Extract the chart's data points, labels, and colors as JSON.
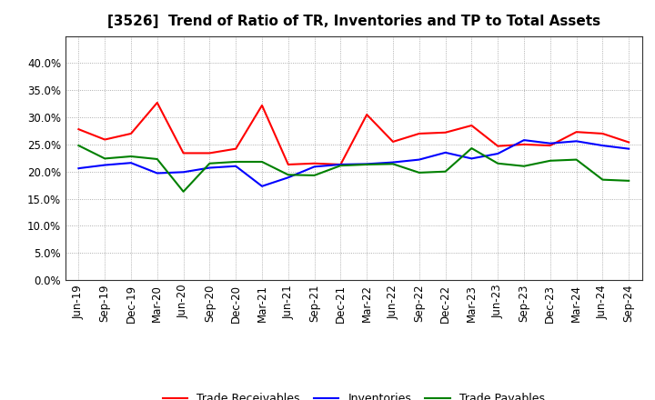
{
  "title": "[3526]  Trend of Ratio of TR, Inventories and TP to Total Assets",
  "x_labels": [
    "Jun-19",
    "Sep-19",
    "Dec-19",
    "Mar-20",
    "Jun-20",
    "Sep-20",
    "Dec-20",
    "Mar-21",
    "Jun-21",
    "Sep-21",
    "Dec-21",
    "Mar-22",
    "Jun-22",
    "Sep-22",
    "Dec-22",
    "Mar-23",
    "Jun-23",
    "Sep-23",
    "Dec-23",
    "Mar-24",
    "Jun-24",
    "Sep-24"
  ],
  "trade_receivables": [
    0.278,
    0.259,
    0.27,
    0.327,
    0.234,
    0.234,
    0.242,
    0.322,
    0.213,
    0.215,
    0.213,
    0.305,
    0.255,
    0.27,
    0.272,
    0.285,
    0.247,
    0.25,
    0.248,
    0.273,
    0.27,
    0.254
  ],
  "inventories": [
    0.206,
    0.212,
    0.216,
    0.197,
    0.199,
    0.207,
    0.21,
    0.173,
    0.189,
    0.209,
    0.213,
    0.214,
    0.217,
    0.222,
    0.235,
    0.224,
    0.233,
    0.258,
    0.252,
    0.256,
    0.248,
    0.242
  ],
  "trade_payables": [
    0.248,
    0.224,
    0.228,
    0.223,
    0.163,
    0.215,
    0.218,
    0.218,
    0.194,
    0.193,
    0.211,
    0.213,
    0.214,
    0.198,
    0.2,
    0.243,
    0.215,
    0.21,
    0.22,
    0.222,
    0.185,
    0.183
  ],
  "color_tr": "#ff0000",
  "color_inv": "#0000ff",
  "color_tp": "#008000",
  "ylim": [
    0.0,
    0.45
  ],
  "yticks": [
    0.0,
    0.05,
    0.1,
    0.15,
    0.2,
    0.25,
    0.3,
    0.35,
    0.4
  ],
  "legend_labels": [
    "Trade Receivables",
    "Inventories",
    "Trade Payables"
  ],
  "background_color": "#ffffff",
  "plot_bg_color": "#ffffff",
  "title_fontsize": 11,
  "tick_fontsize": 8.5,
  "legend_fontsize": 9
}
